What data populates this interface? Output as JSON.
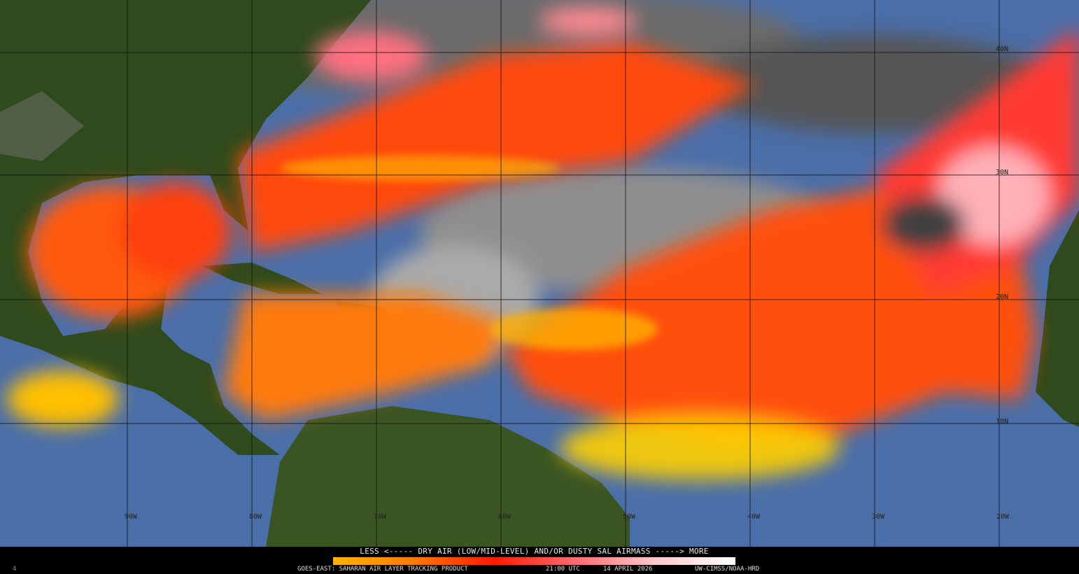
{
  "product": {
    "legend_title": "LESS <----- DRY AIR (LOW/MID-LEVEL) AND/OR DUSTY SAL AIRMASS -----> MORE",
    "legend_colors": [
      "#ffb400",
      "#ff7a00",
      "#ff1a00",
      "#ff6a70",
      "#ffc8cc",
      "#ffffff"
    ],
    "footer_product": "GOES-EAST: SAHARAN AIR LAYER TRACKING PRODUCT",
    "footer_time": "21:00 UTC",
    "footer_date": "14 APRIL 2026",
    "footer_credit": "UW-CIMSS/NOAA-HRD",
    "corner_mark": "4"
  },
  "grid": {
    "longitude_labels": [
      "90W",
      "80W",
      "70W",
      "60W",
      "50W",
      "40W",
      "30W",
      "20W"
    ],
    "latitude_labels": [
      "40N",
      "30N",
      "20N",
      "10N"
    ]
  },
  "colors": {
    "ocean": "#4a6ea8",
    "land": "#2f4a1c",
    "cloud": "#9a9a9a",
    "sal_low": "#ffd000",
    "sal_mid": "#ff6000",
    "sal_high": "#ff2020",
    "sal_max": "#ffb0b8"
  }
}
